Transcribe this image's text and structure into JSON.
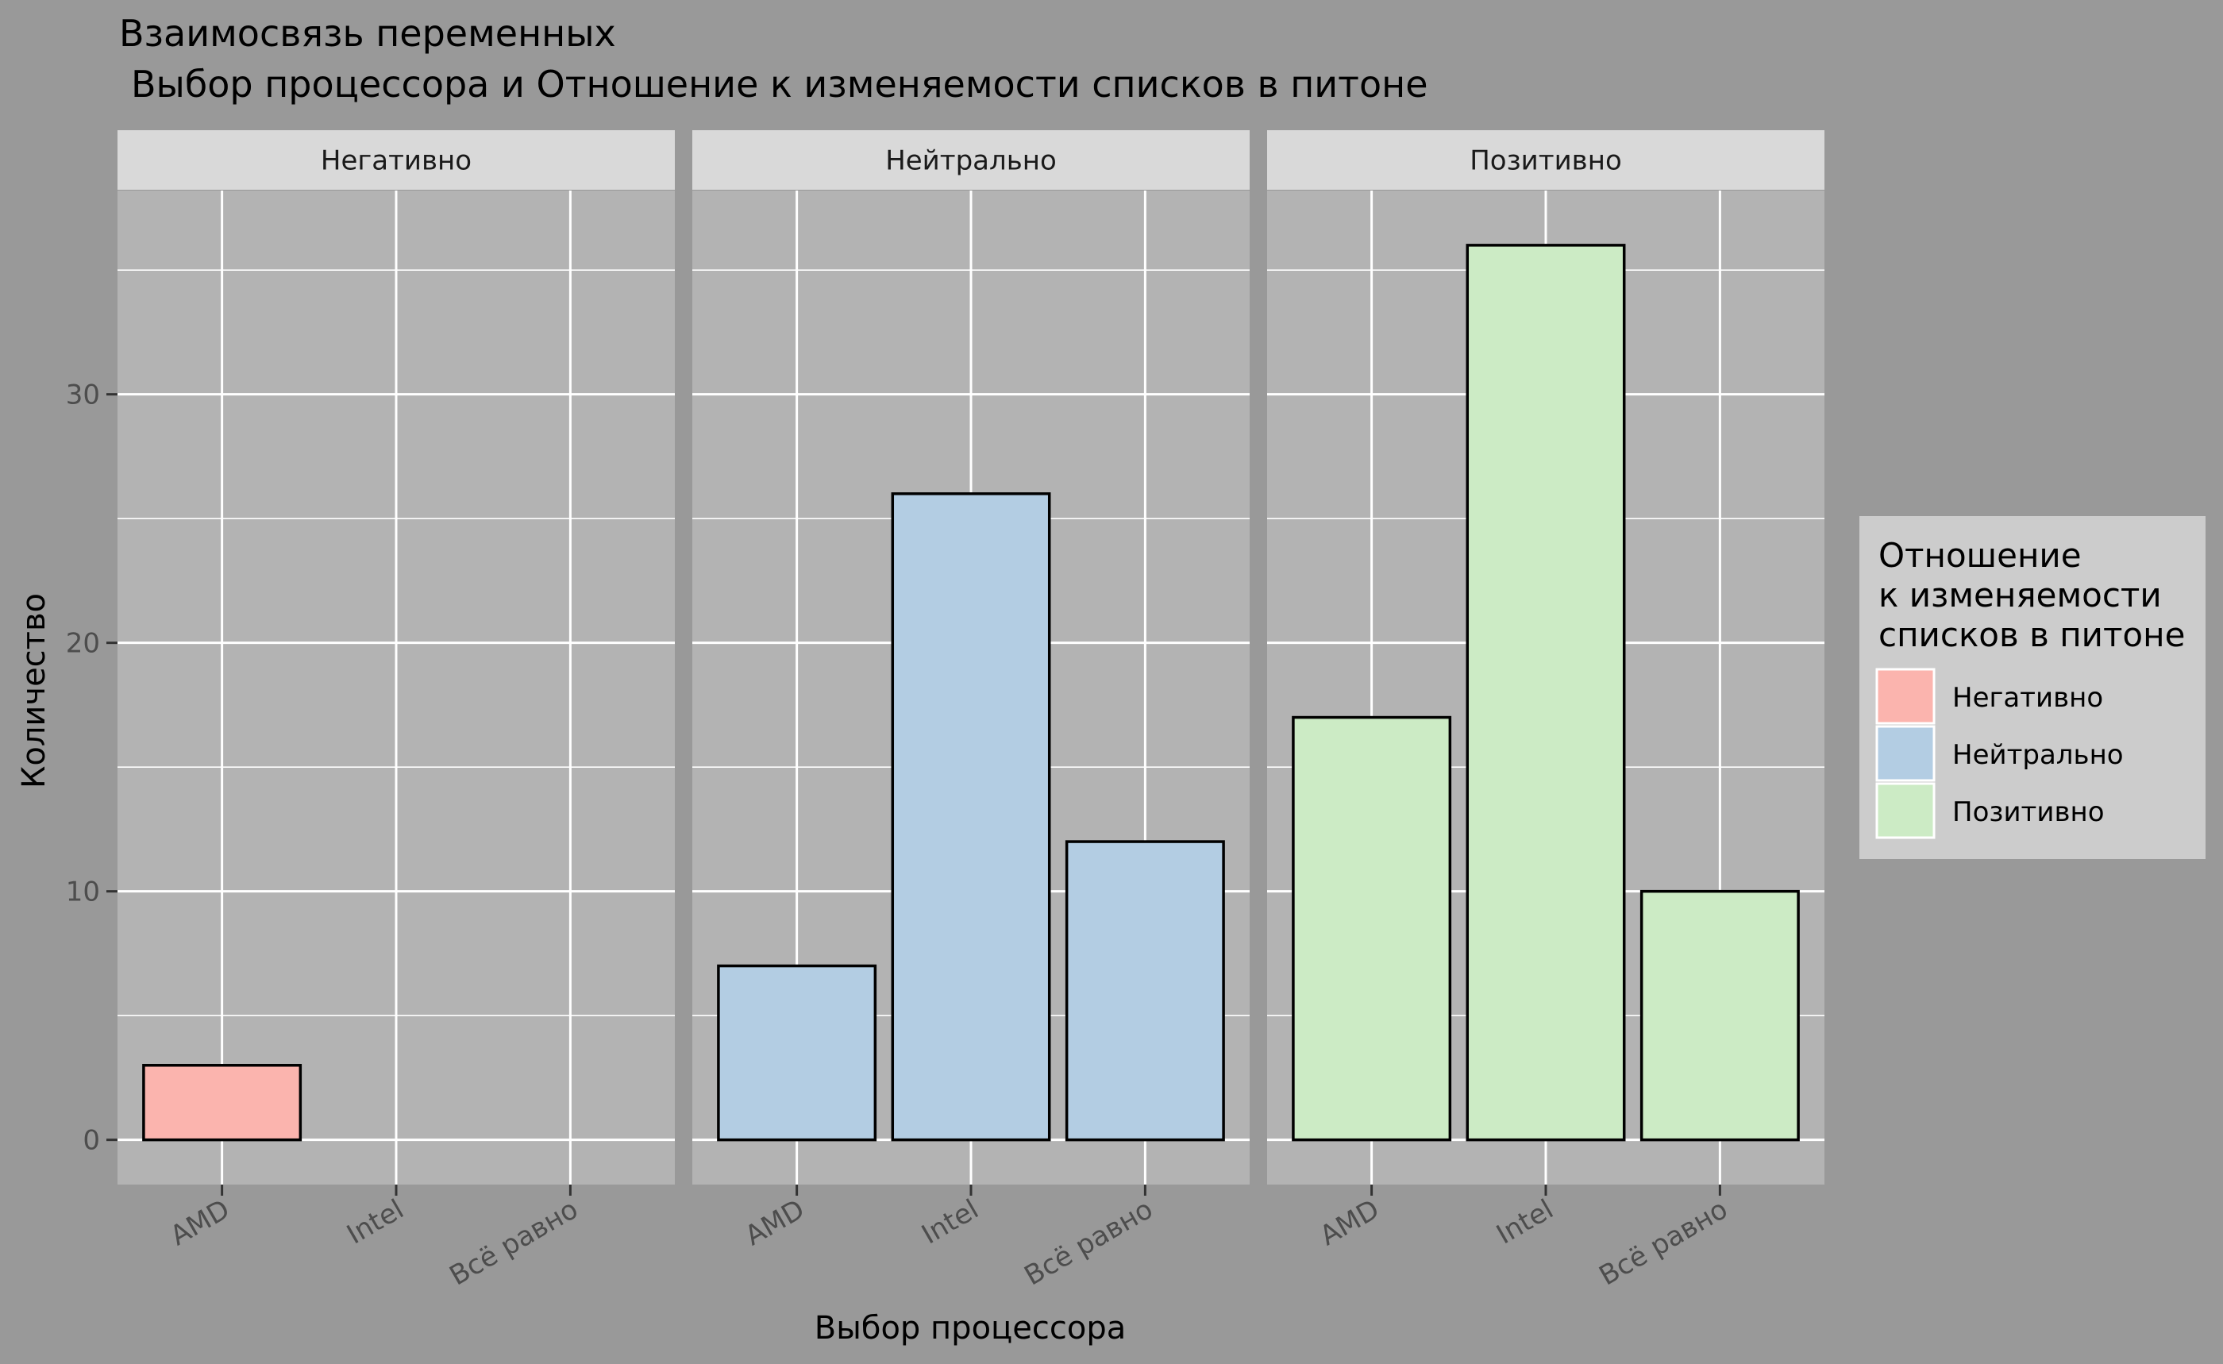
{
  "chart_data": {
    "type": "bar",
    "title": "Взаимосвязь переменных",
    "subtitle": "Выбор процессора и Отношение к изменяемости списков в питоне",
    "xlabel": "Выбор процессора",
    "ylabel": "Количество",
    "categories": [
      "AMD",
      "Intel",
      "Всё равно"
    ],
    "ylim": [
      -1.8,
      38.2
    ],
    "yticks": [
      0,
      10,
      20,
      30
    ],
    "grid": true,
    "facets": [
      {
        "name": "Негативно",
        "fill": "#FBB4AE",
        "values": [
          3,
          0,
          0
        ]
      },
      {
        "name": "Нейтрально",
        "fill": "#B3CDE3",
        "values": [
          7,
          26,
          12
        ]
      },
      {
        "name": "Позитивно",
        "fill": "#CCEBC5",
        "values": [
          17,
          36,
          10
        ]
      }
    ],
    "legend": {
      "title_lines": [
        "Отношение",
        "к изменяемости",
        "списков в питоне"
      ],
      "placement": "right",
      "items": [
        {
          "label": "Негативно",
          "color": "#FBB4AE"
        },
        {
          "label": "Нейтрально",
          "color": "#B3CDE3"
        },
        {
          "label": "Позитивно",
          "color": "#CCEBC5"
        }
      ]
    },
    "colors": {
      "background": "#999999",
      "panel": "#B3B3B3",
      "strip": "#D9D9D9",
      "grid": "#FFFFFF",
      "legend_box": "#CCCCCC",
      "tick_text": "#4D4D4D"
    }
  }
}
